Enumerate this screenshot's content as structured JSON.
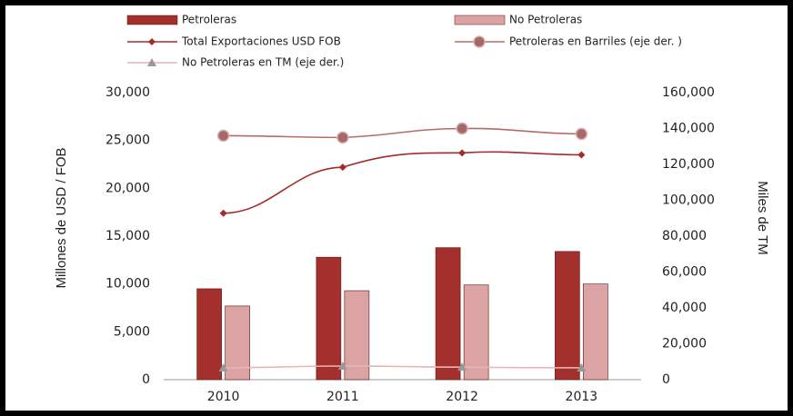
{
  "chart_data": {
    "type": "combo",
    "categories": [
      "2010",
      "2011",
      "2012",
      "2013"
    ],
    "y_label": "Millones de USD / FOB",
    "y2_label": "Miles de TM",
    "ylim": [
      0,
      30000
    ],
    "yticks": [
      0,
      {
        "value": 5000,
        "label": "5,000"
      },
      {
        "value": 10000,
        "label": "10,000"
      },
      {
        "value": 15000,
        "label": "15,000"
      },
      {
        "value": 20000,
        "label": "20,000"
      },
      {
        "value": 25000,
        "label": "25,000"
      },
      {
        "value": 30000,
        "label": "30,000"
      }
    ],
    "y2lim": [
      0,
      160000
    ],
    "y2ticks": [
      0,
      {
        "value": 20000,
        "label": "20,000"
      },
      {
        "value": 40000,
        "label": "40,000"
      },
      {
        "value": 60000,
        "label": "60,000"
      },
      {
        "value": 80000,
        "label": "80,000"
      },
      {
        "value": 100000,
        "label": "100,000"
      },
      {
        "value": 120000,
        "label": "120,000"
      },
      {
        "value": 140000,
        "label": "140,000"
      },
      {
        "value": 160000,
        "label": "160,000"
      }
    ],
    "grid": false,
    "series": [
      {
        "name": "Petroleras",
        "type": "bar",
        "color": "#a3302c",
        "values": [
          9500,
          12800,
          13800,
          13400
        ]
      },
      {
        "name": "No Petroleras",
        "type": "bar",
        "color": "#dba3a3",
        "values": [
          7700,
          9300,
          9900,
          10000
        ]
      },
      {
        "name": "Total Exportaciones USD FOB",
        "type": "line",
        "marker": "diamond",
        "color": "#a52a2a",
        "values": [
          17400,
          22200,
          23700,
          23500
        ]
      },
      {
        "name": "Petroleras en Barriles (eje der. )",
        "type": "line",
        "marker": "circle",
        "axis": "y2",
        "color": "#b86a6a",
        "values": [
          136000,
          135000,
          140000,
          137000
        ]
      },
      {
        "name": "No Petroleras en TM (eje der.)",
        "type": "line",
        "marker": "triangle",
        "axis": "y2",
        "color": "#e8b4b4",
        "values": [
          6600,
          7600,
          7000,
          6600
        ]
      }
    ]
  }
}
